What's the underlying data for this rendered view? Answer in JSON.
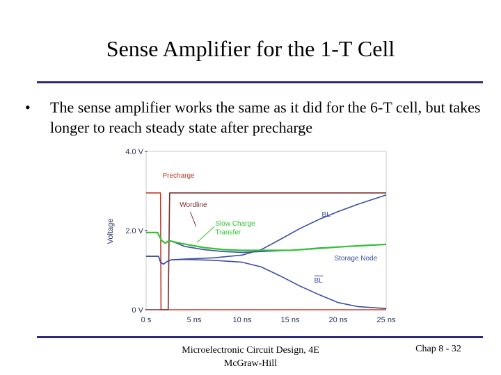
{
  "slide": {
    "title": "Sense Amplifier for the 1-T Cell",
    "bullet_marker": "•",
    "bullet": "The sense amplifier works the same as it did for the 6-T cell, but takes longer to reach steady state after precharge",
    "footer_center_line1": "Microelectronic Circuit Design, 4E",
    "footer_center_line2": "McGraw-Hill",
    "footer_right": "Chap 8 - 32"
  },
  "chart_data": {
    "type": "line",
    "title": "",
    "xlabel": "",
    "ylabel": "Voltage",
    "xlim": [
      0,
      25
    ],
    "ylim": [
      0,
      4
    ],
    "x_ticks": [
      "0 s",
      "5 ns",
      "10 ns",
      "15 ns",
      "20 ns",
      "25 ns"
    ],
    "y_ticks": [
      "0 V",
      "2.0 V",
      "4.0 V"
    ],
    "x_tick_values": [
      0,
      5,
      10,
      15,
      20,
      25
    ],
    "y_tick_values": [
      0,
      2,
      4
    ],
    "series": [
      {
        "name": "Precharge",
        "color": "#c0392b",
        "points": [
          [
            0,
            2.95
          ],
          [
            1.5,
            2.95
          ],
          [
            1.55,
            0
          ],
          [
            25,
            0
          ]
        ]
      },
      {
        "name": "Wordline",
        "color": "#7a2d2d",
        "points": [
          [
            0,
            0
          ],
          [
            2.3,
            0
          ],
          [
            2.45,
            2.95
          ],
          [
            25,
            2.95
          ]
        ]
      },
      {
        "name": "BL",
        "color": "#3b4ea0",
        "points": [
          [
            0,
            1.35
          ],
          [
            1.3,
            1.35
          ],
          [
            1.5,
            1.2
          ],
          [
            1.8,
            1.15
          ],
          [
            2.2,
            1.22
          ],
          [
            2.6,
            1.26
          ],
          [
            4,
            1.28
          ],
          [
            7,
            1.31
          ],
          [
            10,
            1.38
          ],
          [
            12,
            1.52
          ],
          [
            14,
            1.78
          ],
          [
            16,
            2.05
          ],
          [
            18,
            2.28
          ],
          [
            20,
            2.48
          ],
          [
            22,
            2.66
          ],
          [
            25,
            2.9
          ]
        ]
      },
      {
        "name": "BL-bar",
        "color": "#3b4ea0",
        "points": [
          [
            0,
            1.35
          ],
          [
            1.3,
            1.35
          ],
          [
            1.5,
            1.2
          ],
          [
            1.8,
            1.15
          ],
          [
            2.2,
            1.22
          ],
          [
            2.6,
            1.26
          ],
          [
            4,
            1.27
          ],
          [
            7,
            1.25
          ],
          [
            10,
            1.2
          ],
          [
            12,
            1.08
          ],
          [
            14,
            0.85
          ],
          [
            16,
            0.6
          ],
          [
            18,
            0.38
          ],
          [
            20,
            0.18
          ],
          [
            22,
            0.08
          ],
          [
            25,
            0.03
          ]
        ]
      },
      {
        "name": "Storage Node",
        "color": "#3b4ea0",
        "points": [
          [
            0,
            1.95
          ],
          [
            1.2,
            1.95
          ],
          [
            1.6,
            1.75
          ],
          [
            2.0,
            1.68
          ],
          [
            2.4,
            1.75
          ],
          [
            2.8,
            1.72
          ],
          [
            4,
            1.6
          ],
          [
            6,
            1.52
          ],
          [
            8,
            1.47
          ],
          [
            10,
            1.45
          ],
          [
            12,
            1.47
          ],
          [
            15,
            1.5
          ],
          [
            18,
            1.56
          ],
          [
            21,
            1.6
          ],
          [
            25,
            1.65
          ]
        ]
      },
      {
        "name": "Slow Charge Transfer",
        "color": "#33c233",
        "points": [
          [
            0,
            1.95
          ],
          [
            1.2,
            1.95
          ],
          [
            1.6,
            1.75
          ],
          [
            2.0,
            1.68
          ],
          [
            2.4,
            1.75
          ],
          [
            2.8,
            1.72
          ],
          [
            4,
            1.66
          ],
          [
            6,
            1.57
          ],
          [
            8,
            1.52
          ],
          [
            10,
            1.5
          ],
          [
            12,
            1.5
          ],
          [
            15,
            1.5
          ],
          [
            18,
            1.55
          ],
          [
            21,
            1.6
          ],
          [
            25,
            1.65
          ]
        ]
      }
    ],
    "annotations": [
      {
        "text": "Precharge",
        "color": "#c0392b",
        "x": 1.7,
        "y": 3.33
      },
      {
        "text": "Wordline",
        "color": "#7a2d2d",
        "x": 3.5,
        "y": 2.6
      },
      {
        "text": "Slow Charge",
        "color": "#33c233",
        "x": 7.2,
        "y": 2.12
      },
      {
        "text": "Transfer",
        "color": "#33c233",
        "x": 7.2,
        "y": 1.9
      },
      {
        "text": "BL",
        "color": "#3b4ea0",
        "x": 18.3,
        "y": 2.35
      },
      {
        "text": "Storage Node",
        "color": "#3b4ea0",
        "x": 19.6,
        "y": 1.25
      },
      {
        "text": "BL",
        "color": "#3b4ea0",
        "x": 17.5,
        "y": 0.68,
        "overline": true
      }
    ],
    "pointer_lines": [
      {
        "color": "#7a2d2d",
        "from": [
          4.6,
          2.47
        ],
        "to": [
          5.2,
          2.1
        ]
      },
      {
        "color": "#33c233",
        "from": [
          7.1,
          2.1
        ],
        "to": [
          5.3,
          1.7
        ]
      }
    ]
  }
}
